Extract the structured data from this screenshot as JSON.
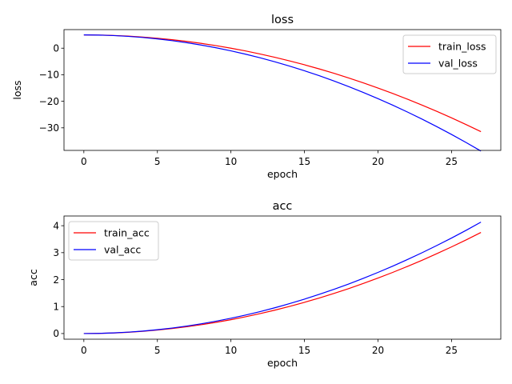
{
  "chart_data": [
    {
      "type": "line",
      "title": "loss",
      "xlabel": "epoch",
      "ylabel": "loss",
      "xlim": [
        -1.35,
        28.35
      ],
      "ylim": [
        -38.5,
        7.0
      ],
      "xticks": [
        0,
        5,
        10,
        15,
        20,
        25
      ],
      "yticks": [
        0,
        -10,
        -20,
        -30
      ],
      "grid": false,
      "legend_position": "top-right",
      "x": [
        0,
        1,
        2,
        3,
        4,
        5,
        6,
        7,
        8,
        9,
        10,
        11,
        12,
        13,
        14,
        15,
        16,
        17,
        18,
        19,
        20,
        21,
        22,
        23,
        24,
        25,
        26,
        27
      ],
      "series": [
        {
          "name": "train_loss",
          "color": "#ff0000",
          "values": [
            5.0,
            4.95,
            4.8,
            4.55,
            4.2,
            3.75,
            3.2,
            2.55,
            1.8,
            0.95,
            0.0,
            -1.05,
            -2.2,
            -3.45,
            -4.8,
            -6.25,
            -7.8,
            -9.45,
            -11.2,
            -13.05,
            -15.0,
            -17.05,
            -19.2,
            -21.45,
            -23.8,
            -26.25,
            -28.8,
            -31.45
          ]
        },
        {
          "name": "val_loss",
          "color": "#0000ff",
          "values": [
            5.0,
            4.94,
            4.76,
            4.46,
            4.04,
            3.5,
            2.84,
            2.06,
            1.16,
            0.14,
            -1.0,
            -2.26,
            -3.64,
            -5.14,
            -6.76,
            -8.5,
            -10.36,
            -12.34,
            -14.44,
            -16.66,
            -19.0,
            -21.46,
            -24.04,
            -26.74,
            -29.56,
            -32.5,
            -35.56,
            -38.74
          ]
        }
      ]
    },
    {
      "type": "line",
      "title": "acc",
      "xlabel": "epoch",
      "ylabel": "acc",
      "xlim": [
        -1.35,
        28.35
      ],
      "ylim": [
        -0.21,
        4.36
      ],
      "xticks": [
        0,
        5,
        10,
        15,
        20,
        25
      ],
      "yticks": [
        0,
        1,
        2,
        3,
        4
      ],
      "grid": false,
      "legend_position": "top-left",
      "x": [
        0,
        1,
        2,
        3,
        4,
        5,
        6,
        7,
        8,
        9,
        10,
        11,
        12,
        13,
        14,
        15,
        16,
        17,
        18,
        19,
        20,
        21,
        22,
        23,
        24,
        25,
        26,
        27
      ],
      "series": [
        {
          "name": "train_acc",
          "color": "#ff0000",
          "values": [
            0.0,
            0.005,
            0.021,
            0.046,
            0.082,
            0.129,
            0.185,
            0.252,
            0.329,
            0.417,
            0.514,
            0.622,
            0.741,
            0.869,
            1.008,
            1.157,
            1.317,
            1.486,
            1.666,
            1.857,
            2.057,
            2.268,
            2.489,
            2.72,
            2.962,
            3.214,
            3.476,
            3.749
          ]
        },
        {
          "name": "val_acc",
          "color": "#0000ff",
          "values": [
            0.0,
            0.006,
            0.023,
            0.051,
            0.091,
            0.142,
            0.204,
            0.278,
            0.363,
            0.459,
            0.567,
            0.686,
            0.816,
            0.958,
            1.111,
            1.276,
            1.452,
            1.639,
            1.837,
            2.047,
            2.268,
            2.501,
            2.744,
            2.999,
            3.266,
            3.543,
            3.832,
            4.133
          ]
        }
      ]
    }
  ]
}
